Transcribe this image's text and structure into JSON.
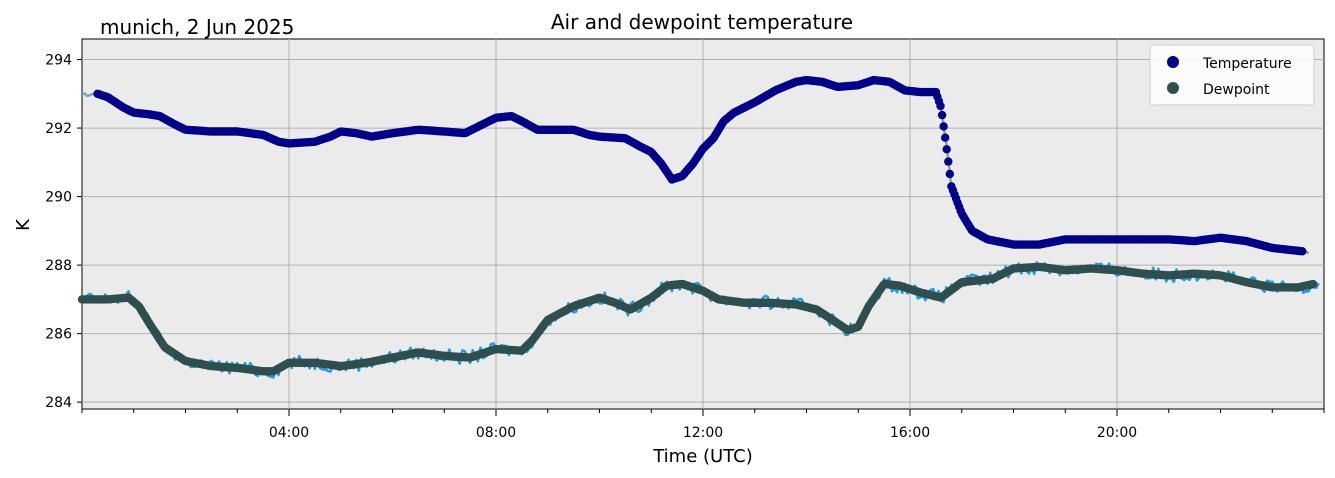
{
  "chart_data": {
    "type": "scatter",
    "title": "Air and dewpoint temperature",
    "subtitle": "munich, 2 Jun 2025",
    "xlabel": "Time (UTC)",
    "ylabel": "K",
    "xlim_hours": [
      0,
      24
    ],
    "ylim": [
      283.8,
      294.6
    ],
    "x_ticks": [
      {
        "hour": 4,
        "label": "04:00"
      },
      {
        "hour": 8,
        "label": "08:00"
      },
      {
        "hour": 12,
        "label": "12:00"
      },
      {
        "hour": 16,
        "label": "16:00"
      },
      {
        "hour": 20,
        "label": "20:00"
      }
    ],
    "y_ticks": [
      284,
      286,
      288,
      290,
      292,
      294
    ],
    "grid": true,
    "legend_position": "top-right",
    "background_color": "#ebebeb",
    "series": [
      {
        "name": "Temperature",
        "color": "#00008b",
        "raw_color": "#7aa8a8",
        "points": [
          [
            0.3,
            293.0
          ],
          [
            0.5,
            292.9
          ],
          [
            0.8,
            292.6
          ],
          [
            1.0,
            292.45
          ],
          [
            1.3,
            292.4
          ],
          [
            1.5,
            292.35
          ],
          [
            1.8,
            292.1
          ],
          [
            2.0,
            291.95
          ],
          [
            2.5,
            291.9
          ],
          [
            3.0,
            291.9
          ],
          [
            3.5,
            291.8
          ],
          [
            3.8,
            291.6
          ],
          [
            4.0,
            291.55
          ],
          [
            4.5,
            291.6
          ],
          [
            4.8,
            291.75
          ],
          [
            5.0,
            291.9
          ],
          [
            5.3,
            291.85
          ],
          [
            5.6,
            291.75
          ],
          [
            6.0,
            291.85
          ],
          [
            6.5,
            291.95
          ],
          [
            7.0,
            291.9
          ],
          [
            7.4,
            291.85
          ],
          [
            7.8,
            292.15
          ],
          [
            8.0,
            292.3
          ],
          [
            8.3,
            292.35
          ],
          [
            8.5,
            292.2
          ],
          [
            8.8,
            291.95
          ],
          [
            9.0,
            291.95
          ],
          [
            9.5,
            291.95
          ],
          [
            9.8,
            291.8
          ],
          [
            10.0,
            291.75
          ],
          [
            10.5,
            291.7
          ],
          [
            10.8,
            291.45
          ],
          [
            11.0,
            291.3
          ],
          [
            11.2,
            290.95
          ],
          [
            11.4,
            290.5
          ],
          [
            11.6,
            290.6
          ],
          [
            11.8,
            290.95
          ],
          [
            12.0,
            291.4
          ],
          [
            12.2,
            291.7
          ],
          [
            12.4,
            292.2
          ],
          [
            12.6,
            292.45
          ],
          [
            13.0,
            292.75
          ],
          [
            13.4,
            293.1
          ],
          [
            13.8,
            293.35
          ],
          [
            14.0,
            293.4
          ],
          [
            14.3,
            293.35
          ],
          [
            14.6,
            293.2
          ],
          [
            15.0,
            293.25
          ],
          [
            15.3,
            293.4
          ],
          [
            15.6,
            293.35
          ],
          [
            15.9,
            293.1
          ],
          [
            16.2,
            293.05
          ],
          [
            16.5,
            293.05
          ],
          [
            16.6,
            292.6
          ],
          [
            16.7,
            291.5
          ],
          [
            16.8,
            290.3
          ],
          [
            17.0,
            289.5
          ],
          [
            17.2,
            289.0
          ],
          [
            17.5,
            288.75
          ],
          [
            18.0,
            288.6
          ],
          [
            18.5,
            288.6
          ],
          [
            19.0,
            288.75
          ],
          [
            20.0,
            288.75
          ],
          [
            21.0,
            288.75
          ],
          [
            21.5,
            288.7
          ],
          [
            22.0,
            288.8
          ],
          [
            22.5,
            288.7
          ],
          [
            23.0,
            288.5
          ],
          [
            23.6,
            288.4
          ]
        ]
      },
      {
        "name": "Dewpoint",
        "color": "#2f4f4f",
        "raw_color": "#1e9ce6",
        "points": [
          [
            0.0,
            287.0
          ],
          [
            0.5,
            287.0
          ],
          [
            0.9,
            287.05
          ],
          [
            1.1,
            286.8
          ],
          [
            1.3,
            286.3
          ],
          [
            1.6,
            285.6
          ],
          [
            2.0,
            285.2
          ],
          [
            2.5,
            285.05
          ],
          [
            3.0,
            285.0
          ],
          [
            3.5,
            284.9
          ],
          [
            3.7,
            284.9
          ],
          [
            4.0,
            285.15
          ],
          [
            4.5,
            285.15
          ],
          [
            5.0,
            285.05
          ],
          [
            5.5,
            285.15
          ],
          [
            6.0,
            285.3
          ],
          [
            6.5,
            285.45
          ],
          [
            7.0,
            285.35
          ],
          [
            7.5,
            285.3
          ],
          [
            8.0,
            285.55
          ],
          [
            8.5,
            285.5
          ],
          [
            8.7,
            285.8
          ],
          [
            9.0,
            286.4
          ],
          [
            9.5,
            286.8
          ],
          [
            10.0,
            287.05
          ],
          [
            10.3,
            286.9
          ],
          [
            10.6,
            286.7
          ],
          [
            11.0,
            287.05
          ],
          [
            11.3,
            287.4
          ],
          [
            11.6,
            287.45
          ],
          [
            12.0,
            287.25
          ],
          [
            12.3,
            287.0
          ],
          [
            12.8,
            286.9
          ],
          [
            13.3,
            286.9
          ],
          [
            13.8,
            286.85
          ],
          [
            14.2,
            286.7
          ],
          [
            14.6,
            286.3
          ],
          [
            14.8,
            286.1
          ],
          [
            15.0,
            286.2
          ],
          [
            15.2,
            286.8
          ],
          [
            15.5,
            287.45
          ],
          [
            15.8,
            287.4
          ],
          [
            16.2,
            287.2
          ],
          [
            16.6,
            287.05
          ],
          [
            17.0,
            287.5
          ],
          [
            17.3,
            287.55
          ],
          [
            17.6,
            287.6
          ],
          [
            18.0,
            287.9
          ],
          [
            18.5,
            287.95
          ],
          [
            19.0,
            287.85
          ],
          [
            19.5,
            287.9
          ],
          [
            20.0,
            287.85
          ],
          [
            20.5,
            287.75
          ],
          [
            21.0,
            287.7
          ],
          [
            21.5,
            287.75
          ],
          [
            22.0,
            287.7
          ],
          [
            22.5,
            287.5
          ],
          [
            23.0,
            287.35
          ],
          [
            23.5,
            287.35
          ],
          [
            23.8,
            287.45
          ]
        ]
      }
    ]
  }
}
